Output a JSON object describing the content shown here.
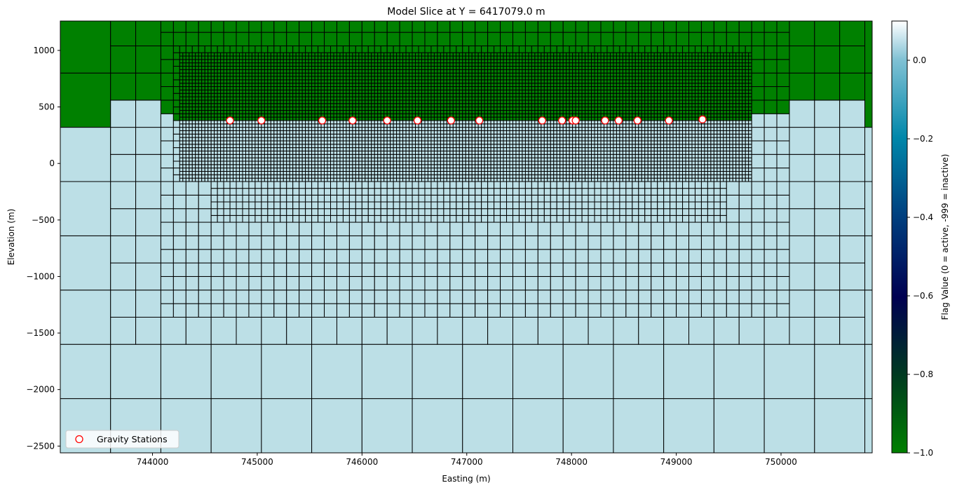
{
  "chart_data": {
    "type": "heatmap",
    "title": "Model Slice at Y = 6417079.0 m",
    "xlabel": "Easting (m)",
    "ylabel": "Elevation (m)",
    "xlim": [
      743120,
      750870
    ],
    "ylim": [
      -2560,
      1260
    ],
    "x_ticks": [
      744000,
      745000,
      746000,
      747000,
      748000,
      749000,
      750000
    ],
    "y_ticks": [
      -2500,
      -2000,
      -1500,
      -1000,
      -500,
      0,
      500,
      1000
    ],
    "colorbar": {
      "label": "Flag Value (0 = active, -999 = inactive)",
      "range": [
        -1.0,
        0.1
      ],
      "ticks": [
        -1.0,
        -0.8,
        -0.6,
        -0.4,
        -0.2,
        0.0
      ],
      "colormap": "ocean",
      "colors": [
        "#008000",
        "#003a20",
        "#000051",
        "#00407f",
        "#0087aa",
        "#80c1d4",
        "#ffffff"
      ]
    },
    "cell_values": {
      "inactive": -1,
      "active": 0
    },
    "cell_colors": {
      "inactive": "#008000",
      "active": "#bcdfe6"
    },
    "topography_profile": [
      [
        743120,
        310
      ],
      [
        743600,
        310
      ],
      [
        743600,
        440
      ],
      [
        744100,
        440
      ],
      [
        744100,
        380
      ],
      [
        747900,
        380
      ],
      [
        749880,
        380
      ],
      [
        749880,
        440
      ],
      [
        750870,
        440
      ]
    ],
    "mesh_sizes": [
      960,
      480,
      240,
      120,
      60,
      30
    ],
    "refinement_zones": [
      {
        "x": [
          743120,
          750870
        ],
        "z": [
          -2560,
          1260
        ],
        "size": 480
      },
      {
        "x": [
          743600,
          750390
        ],
        "z": [
          -1600,
          1260
        ],
        "size": 240
      },
      {
        "x": [
          744130,
          749880
        ],
        "z": [
          -1130,
          1200
        ],
        "size": 120
      },
      {
        "x": [
          744600,
          749400
        ],
        "z": [
          -500,
          900
        ],
        "size": 60
      },
      {
        "x": [
          744260,
          749700
        ],
        "z": [
          -160,
          980
        ],
        "size": 30
      }
    ],
    "stations": {
      "name": "Gravity Stations",
      "x": [
        744740,
        745040,
        745620,
        745910,
        746240,
        746530,
        746850,
        747120,
        747720,
        747910,
        748010,
        748040,
        748320,
        748450,
        748630,
        748930,
        749250
      ],
      "y": [
        380,
        380,
        380,
        380,
        380,
        380,
        380,
        380,
        380,
        380,
        380,
        380,
        380,
        380,
        380,
        380,
        390
      ]
    },
    "legend": {
      "label": "Gravity Stations",
      "placement": "lower-left"
    },
    "grid": false
  }
}
